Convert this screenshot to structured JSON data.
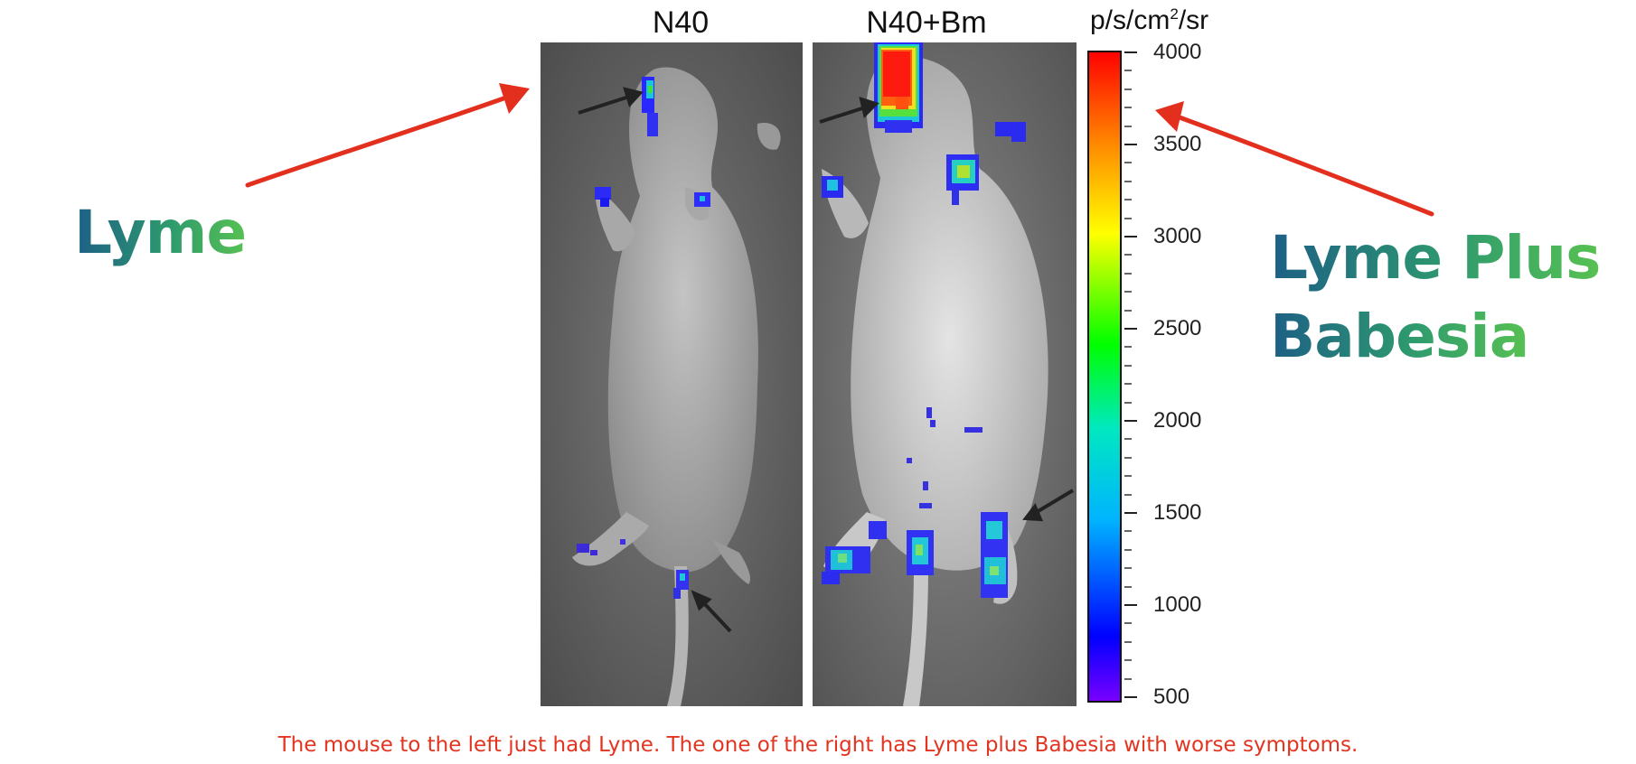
{
  "panels": {
    "left_title": "N40",
    "right_title": "N40+Bm"
  },
  "labels": {
    "left": "Lyme",
    "right_line1": "Lyme Plus",
    "right_line2": "Babesia"
  },
  "colorbar": {
    "unit_prefix": "p/s/cm",
    "unit_sup": "2",
    "unit_suffix": "/sr",
    "ticks": [
      "4000",
      "3500",
      "3000",
      "2500",
      "2000",
      "1500",
      "1000",
      "500"
    ],
    "range": [
      500,
      4000
    ]
  },
  "caption": "The mouse to the left just had Lyme. The one of the right has Lyme plus Babesia with worse symptoms.",
  "colors": {
    "arrow": "#e3301e",
    "caption": "#e2341f"
  }
}
